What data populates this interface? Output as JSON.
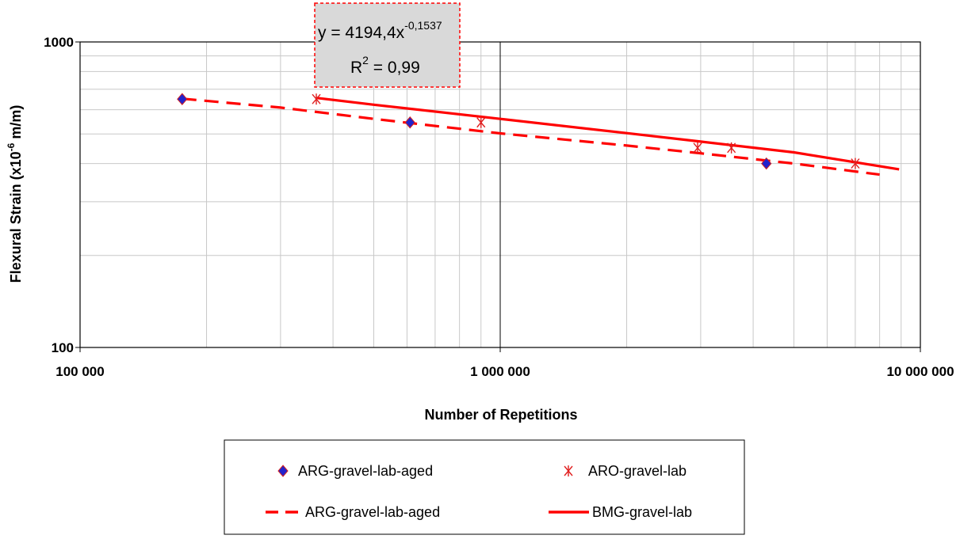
{
  "chart_data": {
    "type": "scatter",
    "x_scale": "log",
    "y_scale": "log",
    "xlim": [
      100000,
      10000000
    ],
    "ylim": [
      100,
      1000
    ],
    "x_ticks": [
      "100 000",
      "1 000 000",
      "10 000 000"
    ],
    "y_ticks": [
      "100",
      "1000"
    ],
    "xlabel": "Number of Repetitions",
    "ylabel_main": "Flexural Strain (x10",
    "ylabel_sup": "-6",
    "ylabel_unit": " m/m)",
    "grid": true,
    "legend_position": "bottom",
    "series": [
      {
        "name": "ARG-gravel-lab-aged",
        "kind": "markers",
        "marker": "diamond",
        "color": "#d42020",
        "points": [
          [
            175000,
            650
          ],
          [
            610000,
            545
          ],
          [
            4300000,
            400
          ]
        ]
      },
      {
        "name": "ARO-gravel-lab",
        "kind": "markers",
        "marker": "asterisk",
        "color": "#e02020",
        "points": [
          [
            365000,
            650
          ],
          [
            900000,
            545
          ],
          [
            2950000,
            450
          ],
          [
            3550000,
            450
          ],
          [
            7000000,
            400
          ]
        ]
      },
      {
        "name": "ARG-gravel-lab-aged",
        "kind": "dashed-line",
        "color": "#ff0000",
        "points": [
          [
            175000,
            652
          ],
          [
            300000,
            610
          ],
          [
            500000,
            560
          ],
          [
            1000000,
            502
          ],
          [
            2000000,
            458
          ],
          [
            3000000,
            432
          ],
          [
            5000000,
            400
          ],
          [
            8000000,
            368
          ]
        ]
      },
      {
        "name": "BMG-gravel-lab",
        "kind": "solid-line",
        "color": "#ff0000",
        "points": [
          [
            365000,
            656
          ],
          [
            500000,
            623
          ],
          [
            1000000,
            560
          ],
          [
            2000000,
            503
          ],
          [
            3000000,
            472
          ],
          [
            5000000,
            435
          ],
          [
            8900000,
            383
          ]
        ]
      }
    ],
    "annotation": {
      "equation_base": "y = 4194,4x",
      "equation_exp": "-0,1537",
      "r2_base": "R",
      "r2_sup": "2",
      "r2_value": " = 0,99"
    }
  },
  "legend": {
    "items": [
      {
        "label": "ARG-gravel-lab-aged"
      },
      {
        "label": "ARO-gravel-lab"
      },
      {
        "label": "ARG-gravel-lab-aged"
      },
      {
        "label": "BMG-gravel-lab"
      }
    ]
  }
}
